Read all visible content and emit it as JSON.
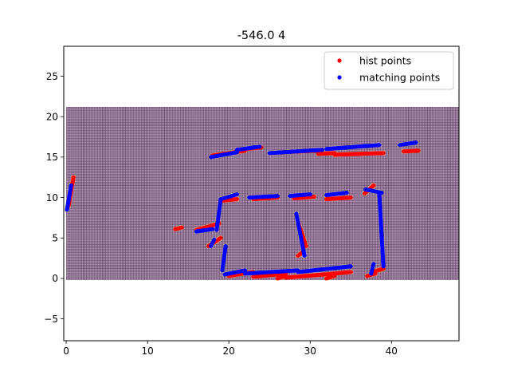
{
  "chart_data": {
    "type": "scatter",
    "title": "-546.0 4",
    "xlabel": "",
    "ylabel": "",
    "xlim": [
      -0.3,
      48.3
    ],
    "ylim": [
      -7.7,
      28.7
    ],
    "xticks": [
      0,
      10,
      20,
      30,
      40
    ],
    "yticks": [
      -5,
      0,
      5,
      10,
      15,
      20,
      25
    ],
    "grid": false,
    "legend_position": "top-right",
    "background_heatmap": {
      "x_range": [
        0,
        48.3
      ],
      "y_range": [
        -0.2,
        21.2
      ],
      "cell_size": 0.2,
      "fill_color": "#b493b7",
      "line_color": "#2b1330",
      "highlight_color": "#f6e07a"
    },
    "series": [
      {
        "name": "hist points",
        "color": "#ff0000",
        "segments": [
          {
            "x": [
              0.3,
              0.9
            ],
            "y": [
              9.0,
              12.5
            ]
          },
          {
            "x": [
              18.0,
              22.0
            ],
            "y": [
              15.2,
              15.8
            ]
          },
          {
            "x": [
              22.0,
              24.0
            ],
            "y": [
              16.0,
              16.2
            ]
          },
          {
            "x": [
              26.5,
              31.0
            ],
            "y": [
              15.6,
              15.8
            ]
          },
          {
            "x": [
              31.0,
              33.0
            ],
            "y": [
              15.4,
              15.5
            ]
          },
          {
            "x": [
              33.0,
              39.0
            ],
            "y": [
              15.3,
              15.5
            ]
          },
          {
            "x": [
              41.5,
              43.3
            ],
            "y": [
              15.7,
              15.8
            ]
          },
          {
            "x": [
              13.4,
              14.2
            ],
            "y": [
              6.1,
              6.3
            ]
          },
          {
            "x": [
              16.0,
              18.8
            ],
            "y": [
              6.0,
              6.8
            ]
          },
          {
            "x": [
              17.5,
              19.0
            ],
            "y": [
              4.0,
              5.0
            ]
          },
          {
            "x": [
              20.0,
              23.0
            ],
            "y": [
              0.3,
              0.8
            ]
          },
          {
            "x": [
              23.0,
              27.0
            ],
            "y": [
              0.2,
              0.6
            ]
          },
          {
            "x": [
              27.0,
              33.0
            ],
            "y": [
              0.1,
              0.6
            ]
          },
          {
            "x": [
              26.0,
              27.0
            ],
            "y": [
              0.0,
              0.3
            ]
          },
          {
            "x": [
              32.0,
              33.0
            ],
            "y": [
              0.0,
              0.3
            ]
          },
          {
            "x": [
              33.0,
              35.0
            ],
            "y": [
              0.6,
              0.8
            ]
          },
          {
            "x": [
              37.0,
              38.0
            ],
            "y": [
              0.3,
              0.6
            ]
          },
          {
            "x": [
              38.0,
              39.0
            ],
            "y": [
              0.9,
              1.2
            ]
          },
          {
            "x": [
              32.0,
              35.0
            ],
            "y": [
              9.8,
              10.0
            ]
          },
          {
            "x": [
              28.0,
              30.5
            ],
            "y": [
              9.9,
              10.1
            ]
          },
          {
            "x": [
              23.0,
              26.0
            ],
            "y": [
              9.8,
              10.0
            ]
          },
          {
            "x": [
              19.0,
              21.0
            ],
            "y": [
              9.6,
              9.8
            ]
          },
          {
            "x": [
              28.5,
              29.5
            ],
            "y": [
              7.0,
              4.0
            ]
          },
          {
            "x": [
              28.5,
              29.0
            ],
            "y": [
              2.8,
              3.2
            ]
          },
          {
            "x": [
              36.7,
              37.8
            ],
            "y": [
              10.5,
              11.5
            ]
          }
        ]
      },
      {
        "name": "matching points",
        "color": "#0000ff",
        "segments": [
          {
            "x": [
              0.1,
              0.6
            ],
            "y": [
              8.5,
              11.5
            ]
          },
          {
            "x": [
              17.8,
              21.0
            ],
            "y": [
              15.0,
              15.6
            ]
          },
          {
            "x": [
              21.0,
              23.8
            ],
            "y": [
              15.9,
              16.3
            ]
          },
          {
            "x": [
              25.0,
              31.5
            ],
            "y": [
              15.5,
              15.9
            ]
          },
          {
            "x": [
              32.0,
              38.5
            ],
            "y": [
              16.0,
              16.5
            ]
          },
          {
            "x": [
              41.0,
              43.0
            ],
            "y": [
              16.5,
              16.8
            ]
          },
          {
            "x": [
              16.0,
              18.0
            ],
            "y": [
              5.8,
              6.1
            ]
          },
          {
            "x": [
              18.5,
              19.0
            ],
            "y": [
              6.0,
              9.8
            ]
          },
          {
            "x": [
              19.0,
              21.0
            ],
            "y": [
              9.8,
              10.4
            ]
          },
          {
            "x": [
              22.5,
              26.0
            ],
            "y": [
              10.0,
              10.2
            ]
          },
          {
            "x": [
              27.5,
              30.0
            ],
            "y": [
              10.2,
              10.4
            ]
          },
          {
            "x": [
              32.0,
              34.5
            ],
            "y": [
              10.3,
              10.6
            ]
          },
          {
            "x": [
              36.8,
              38.8
            ],
            "y": [
              11.0,
              10.6
            ]
          },
          {
            "x": [
              38.5,
              39.0
            ],
            "y": [
              10.5,
              1.5
            ]
          },
          {
            "x": [
              37.5,
              37.8
            ],
            "y": [
              0.6,
              1.8
            ]
          },
          {
            "x": [
              17.8,
              18.2
            ],
            "y": [
              4.0,
              4.8
            ]
          },
          {
            "x": [
              19.2,
              19.6
            ],
            "y": [
              1.0,
              4.0
            ]
          },
          {
            "x": [
              19.5,
              22.0
            ],
            "y": [
              0.5,
              1.0
            ]
          },
          {
            "x": [
              22.0,
              28.5
            ],
            "y": [
              0.6,
              1.0
            ]
          },
          {
            "x": [
              28.5,
              35.0
            ],
            "y": [
              0.8,
              1.5
            ]
          },
          {
            "x": [
              28.3,
              29.3
            ],
            "y": [
              8.0,
              2.8
            ]
          }
        ]
      }
    ]
  }
}
